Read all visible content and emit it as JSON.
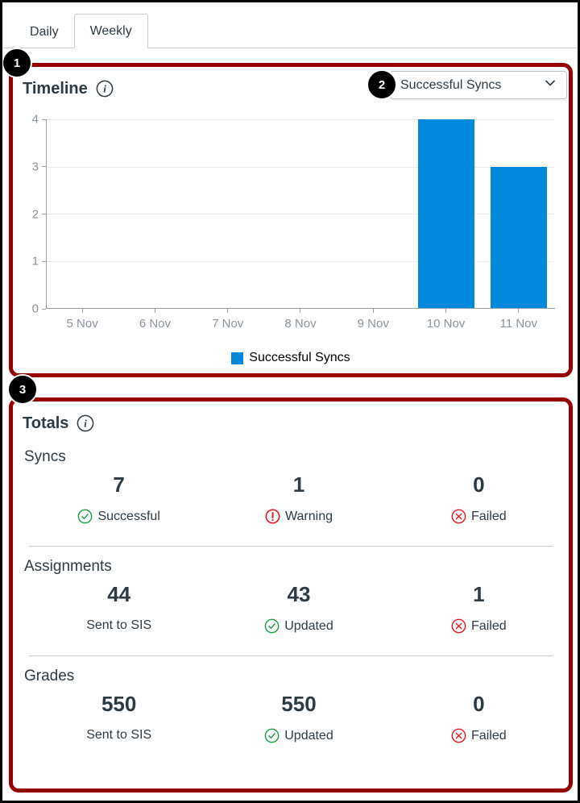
{
  "tabs": [
    {
      "label": "Daily",
      "active": false
    },
    {
      "label": "Weekly",
      "active": true
    }
  ],
  "badges": {
    "one": "1",
    "two": "2",
    "three": "3"
  },
  "timeline": {
    "title": "Timeline",
    "info_icon": "info-icon",
    "dropdown_value": "Successful Syncs",
    "legend_label": "Successful Syncs"
  },
  "chart_data": {
    "type": "bar",
    "categories": [
      "5 Nov",
      "6 Nov",
      "7 Nov",
      "8 Nov",
      "9 Nov",
      "10 Nov",
      "11 Nov"
    ],
    "series": [
      {
        "name": "Successful Syncs",
        "values": [
          0,
          0,
          0,
          0,
          0,
          4,
          3
        ]
      }
    ],
    "title": "",
    "xlabel": "",
    "ylabel": "",
    "ylim": [
      0,
      4
    ],
    "yticks": [
      0,
      1,
      2,
      3,
      4
    ],
    "grid": true,
    "legend_position": "bottom",
    "bar_color": "#0289de"
  },
  "totals": {
    "title": "Totals",
    "info_icon": "info-icon",
    "sections": [
      {
        "label": "Syncs",
        "stats": [
          {
            "value": "7",
            "label": "Successful",
            "icon": "check-circle"
          },
          {
            "value": "1",
            "label": "Warning",
            "icon": "warning-circle"
          },
          {
            "value": "0",
            "label": "Failed",
            "icon": "x-circle"
          }
        ]
      },
      {
        "label": "Assignments",
        "stats": [
          {
            "value": "44",
            "label": "Sent to SIS",
            "icon": "none"
          },
          {
            "value": "43",
            "label": "Updated",
            "icon": "check-circle"
          },
          {
            "value": "1",
            "label": "Failed",
            "icon": "x-circle"
          }
        ]
      },
      {
        "label": "Grades",
        "stats": [
          {
            "value": "550",
            "label": "Sent to SIS",
            "icon": "none"
          },
          {
            "value": "550",
            "label": "Updated",
            "icon": "check-circle"
          },
          {
            "value": "0",
            "label": "Failed",
            "icon": "x-circle"
          }
        ]
      }
    ]
  },
  "colors": {
    "accent_blue": "#0289de",
    "annotation_red": "#970000",
    "success_green": "#18a242",
    "error_red": "#e31c23",
    "text_dark": "#2d3b45",
    "axis_gray": "#8a949d"
  }
}
